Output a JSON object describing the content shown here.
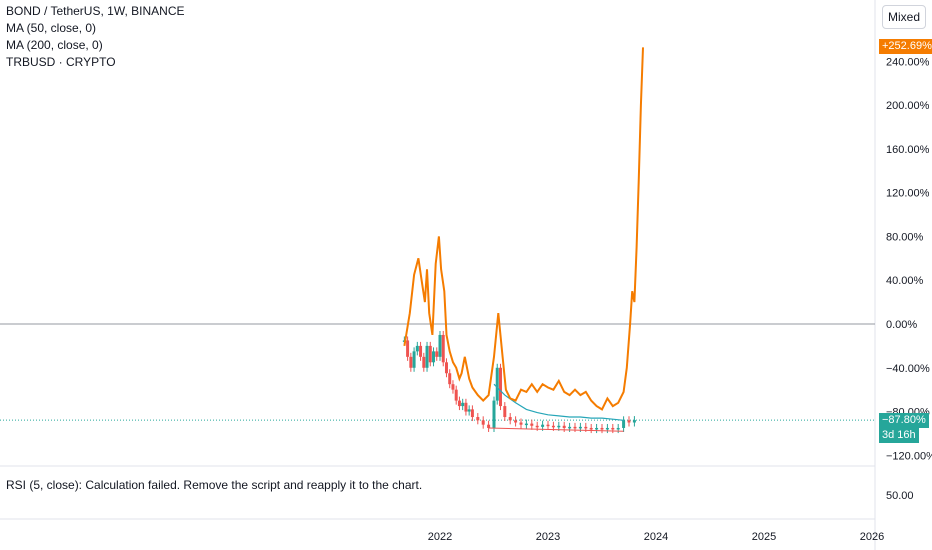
{
  "legend": {
    "title": "BOND / TetherUS, 1W, BINANCE",
    "ma50": "MA (50, close, 0)",
    "ma200": "MA (200, close, 0)",
    "compare": "TRBUSD · CRYPTO"
  },
  "scale_mode_label": "Mixed",
  "rsi_message": "RSI (5, close): Calculation failed. Remove the script and reapply it to the chart.",
  "rsi_scale_label": "50.00",
  "badges": {
    "trb_change": "+252.69%",
    "bond_change": "−87.80%",
    "countdown": "3d 16h"
  },
  "colors": {
    "up": "#26a69a",
    "down": "#ef5350",
    "trb_line": "#f57c00",
    "ma_line": "#26a6b8",
    "support_line": "#ef5350",
    "zero_line": "#9598a1"
  },
  "chart_data": {
    "type": "line",
    "title": "BOND / TetherUS, 1W, BINANCE",
    "y_scale": "percent",
    "ylim": [
      -130,
      260
    ],
    "y_ticks": [
      240,
      200,
      160,
      120,
      80,
      40,
      0,
      -40,
      -80,
      -120
    ],
    "y_tick_labels": [
      "240.00%",
      "200.00%",
      "160.00%",
      "120.00%",
      "80.00%",
      "40.00%",
      "0.00%",
      "−40.00%",
      "−80.00%",
      "−120.00%"
    ],
    "x_tick_labels": [
      "2022",
      "2023",
      "2024",
      "2025",
      "2026"
    ],
    "x_ticks": [
      2022,
      2023,
      2024,
      2025,
      2026
    ],
    "xlim": [
      2020.6,
      2026.4
    ],
    "series": [
      {
        "name": "TRBUSD · CRYPTO",
        "kind": "line",
        "points": [
          [
            2021.67,
            -20
          ],
          [
            2021.72,
            10
          ],
          [
            2021.76,
            45
          ],
          [
            2021.8,
            60
          ],
          [
            2021.83,
            40
          ],
          [
            2021.86,
            20
          ],
          [
            2021.88,
            50
          ],
          [
            2021.9,
            10
          ],
          [
            2021.93,
            -10
          ],
          [
            2021.96,
            55
          ],
          [
            2021.99,
            80
          ],
          [
            2022.01,
            50
          ],
          [
            2022.04,
            30
          ],
          [
            2022.06,
            -10
          ],
          [
            2022.09,
            -25
          ],
          [
            2022.12,
            -35
          ],
          [
            2022.15,
            -40
          ],
          [
            2022.18,
            -50
          ],
          [
            2022.2,
            -45
          ],
          [
            2022.23,
            -30
          ],
          [
            2022.27,
            -50
          ],
          [
            2022.3,
            -58
          ],
          [
            2022.35,
            -65
          ],
          [
            2022.4,
            -70
          ],
          [
            2022.45,
            -65
          ],
          [
            2022.5,
            -30
          ],
          [
            2022.54,
            10
          ],
          [
            2022.58,
            -30
          ],
          [
            2022.61,
            -60
          ],
          [
            2022.65,
            -68
          ],
          [
            2022.7,
            -70
          ],
          [
            2022.75,
            -60
          ],
          [
            2022.8,
            -62
          ],
          [
            2022.85,
            -55
          ],
          [
            2022.9,
            -62
          ],
          [
            2022.95,
            -55
          ],
          [
            2023.0,
            -58
          ],
          [
            2023.05,
            -60
          ],
          [
            2023.1,
            -52
          ],
          [
            2023.15,
            -62
          ],
          [
            2023.2,
            -65
          ],
          [
            2023.25,
            -60
          ],
          [
            2023.3,
            -65
          ],
          [
            2023.35,
            -62
          ],
          [
            2023.4,
            -70
          ],
          [
            2023.45,
            -75
          ],
          [
            2023.5,
            -78
          ],
          [
            2023.55,
            -68
          ],
          [
            2023.6,
            -75
          ],
          [
            2023.65,
            -72
          ],
          [
            2023.7,
            -62
          ],
          [
            2023.73,
            -40
          ],
          [
            2023.76,
            0
          ],
          [
            2023.78,
            30
          ],
          [
            2023.8,
            20
          ],
          [
            2023.82,
            70
          ],
          [
            2023.84,
            130
          ],
          [
            2023.86,
            200
          ],
          [
            2023.88,
            252.69
          ]
        ]
      },
      {
        "name": "MA (50, close, 0)",
        "kind": "line",
        "points": [
          [
            2022.5,
            -55
          ],
          [
            2022.6,
            -65
          ],
          [
            2022.7,
            -72
          ],
          [
            2022.8,
            -78
          ],
          [
            2022.9,
            -81
          ],
          [
            2023.0,
            -83
          ],
          [
            2023.1,
            -84
          ],
          [
            2023.2,
            -85
          ],
          [
            2023.3,
            -85
          ],
          [
            2023.4,
            -86
          ],
          [
            2023.5,
            -86
          ],
          [
            2023.6,
            -87
          ],
          [
            2023.7,
            -88
          ]
        ]
      },
      {
        "name": "BOND / TetherUS",
        "kind": "candles",
        "points": [
          [
            2021.67,
            -15
          ],
          [
            2021.7,
            -30
          ],
          [
            2021.73,
            -40
          ],
          [
            2021.76,
            -25
          ],
          [
            2021.79,
            -20
          ],
          [
            2021.82,
            -30
          ],
          [
            2021.85,
            -40
          ],
          [
            2021.88,
            -20
          ],
          [
            2021.91,
            -35
          ],
          [
            2021.94,
            -25
          ],
          [
            2021.97,
            -30
          ],
          [
            2022.0,
            -10
          ],
          [
            2022.03,
            -35
          ],
          [
            2022.06,
            -45
          ],
          [
            2022.09,
            -55
          ],
          [
            2022.12,
            -60
          ],
          [
            2022.15,
            -70
          ],
          [
            2022.18,
            -75
          ],
          [
            2022.21,
            -72
          ],
          [
            2022.24,
            -80
          ],
          [
            2022.27,
            -78
          ],
          [
            2022.3,
            -85
          ],
          [
            2022.35,
            -88
          ],
          [
            2022.4,
            -92
          ],
          [
            2022.45,
            -95
          ],
          [
            2022.5,
            -70
          ],
          [
            2022.53,
            -40
          ],
          [
            2022.56,
            -75
          ],
          [
            2022.6,
            -85
          ],
          [
            2022.65,
            -88
          ],
          [
            2022.7,
            -90
          ],
          [
            2022.75,
            -92
          ],
          [
            2022.8,
            -91
          ],
          [
            2022.85,
            -93
          ],
          [
            2022.9,
            -94
          ],
          [
            2022.95,
            -92
          ],
          [
            2023.0,
            -93
          ],
          [
            2023.05,
            -94
          ],
          [
            2023.1,
            -93
          ],
          [
            2023.15,
            -95
          ],
          [
            2023.2,
            -94
          ],
          [
            2023.25,
            -95
          ],
          [
            2023.3,
            -94
          ],
          [
            2023.35,
            -95
          ],
          [
            2023.4,
            -96
          ],
          [
            2023.45,
            -95
          ],
          [
            2023.5,
            -96
          ],
          [
            2023.55,
            -95
          ],
          [
            2023.6,
            -96
          ],
          [
            2023.65,
            -95
          ],
          [
            2023.7,
            -88
          ],
          [
            2023.75,
            -90
          ],
          [
            2023.8,
            -87.8
          ]
        ]
      }
    ],
    "support_line": [
      [
        2022.45,
        -95
      ],
      [
        2023.7,
        -98
      ]
    ],
    "last_value_line": -87.8,
    "grid": false
  }
}
